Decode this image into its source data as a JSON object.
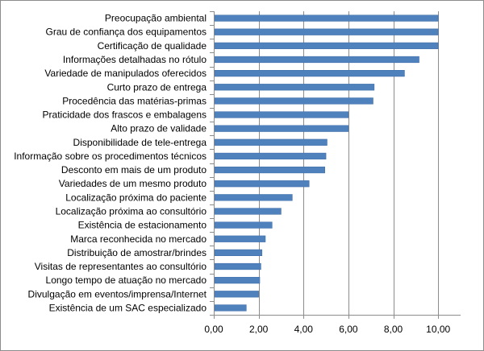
{
  "chart_data": {
    "type": "bar",
    "orientation": "horizontal",
    "title": "",
    "xlabel": "",
    "ylabel": "",
    "xlim": [
      0,
      11
    ],
    "x_ticks": [
      "0,00",
      "2,00",
      "4,00",
      "6,00",
      "8,00",
      "10,00"
    ],
    "x_tick_values": [
      0,
      2,
      4,
      6,
      8,
      10
    ],
    "grid": "vertical",
    "legend": "none",
    "bar_color": "#4f81bd",
    "grid_color": "#8c8c8c",
    "categories": [
      "Preocupação ambiental",
      "Grau de confiança dos equipamentos",
      "Certificação de qualidade",
      "Informações detalhadas no rótulo",
      "Variedade de manipulados oferecidos",
      "Curto prazo de entrega",
      "Procedência das matérias-primas",
      "Praticidade dos frascos e embalagens",
      "Alto prazo de validade",
      "Disponibilidade de tele-entrega",
      "Informação sobre os procedimentos técnicos",
      "Desconto em mais de um produto",
      "Variedades de um mesmo produto",
      "Localização próxima do paciente",
      "Localização próxima ao consultório",
      "Existência de estacionamento",
      "Marca reconhecida no mercado",
      "Distribuição de amostrar/brindes",
      "Visitas de representantes  ao consultório",
      "Longo tempo de atuação no mercado",
      "Divulgação em eventos/imprensa/Internet",
      "Existência de um SAC especializado"
    ],
    "values": [
      10.0,
      10.0,
      10.0,
      9.15,
      8.5,
      7.15,
      7.1,
      6.0,
      6.0,
      5.05,
      5.0,
      4.95,
      4.25,
      3.5,
      3.0,
      2.6,
      2.3,
      2.15,
      2.1,
      2.05,
      2.0,
      1.45
    ]
  }
}
